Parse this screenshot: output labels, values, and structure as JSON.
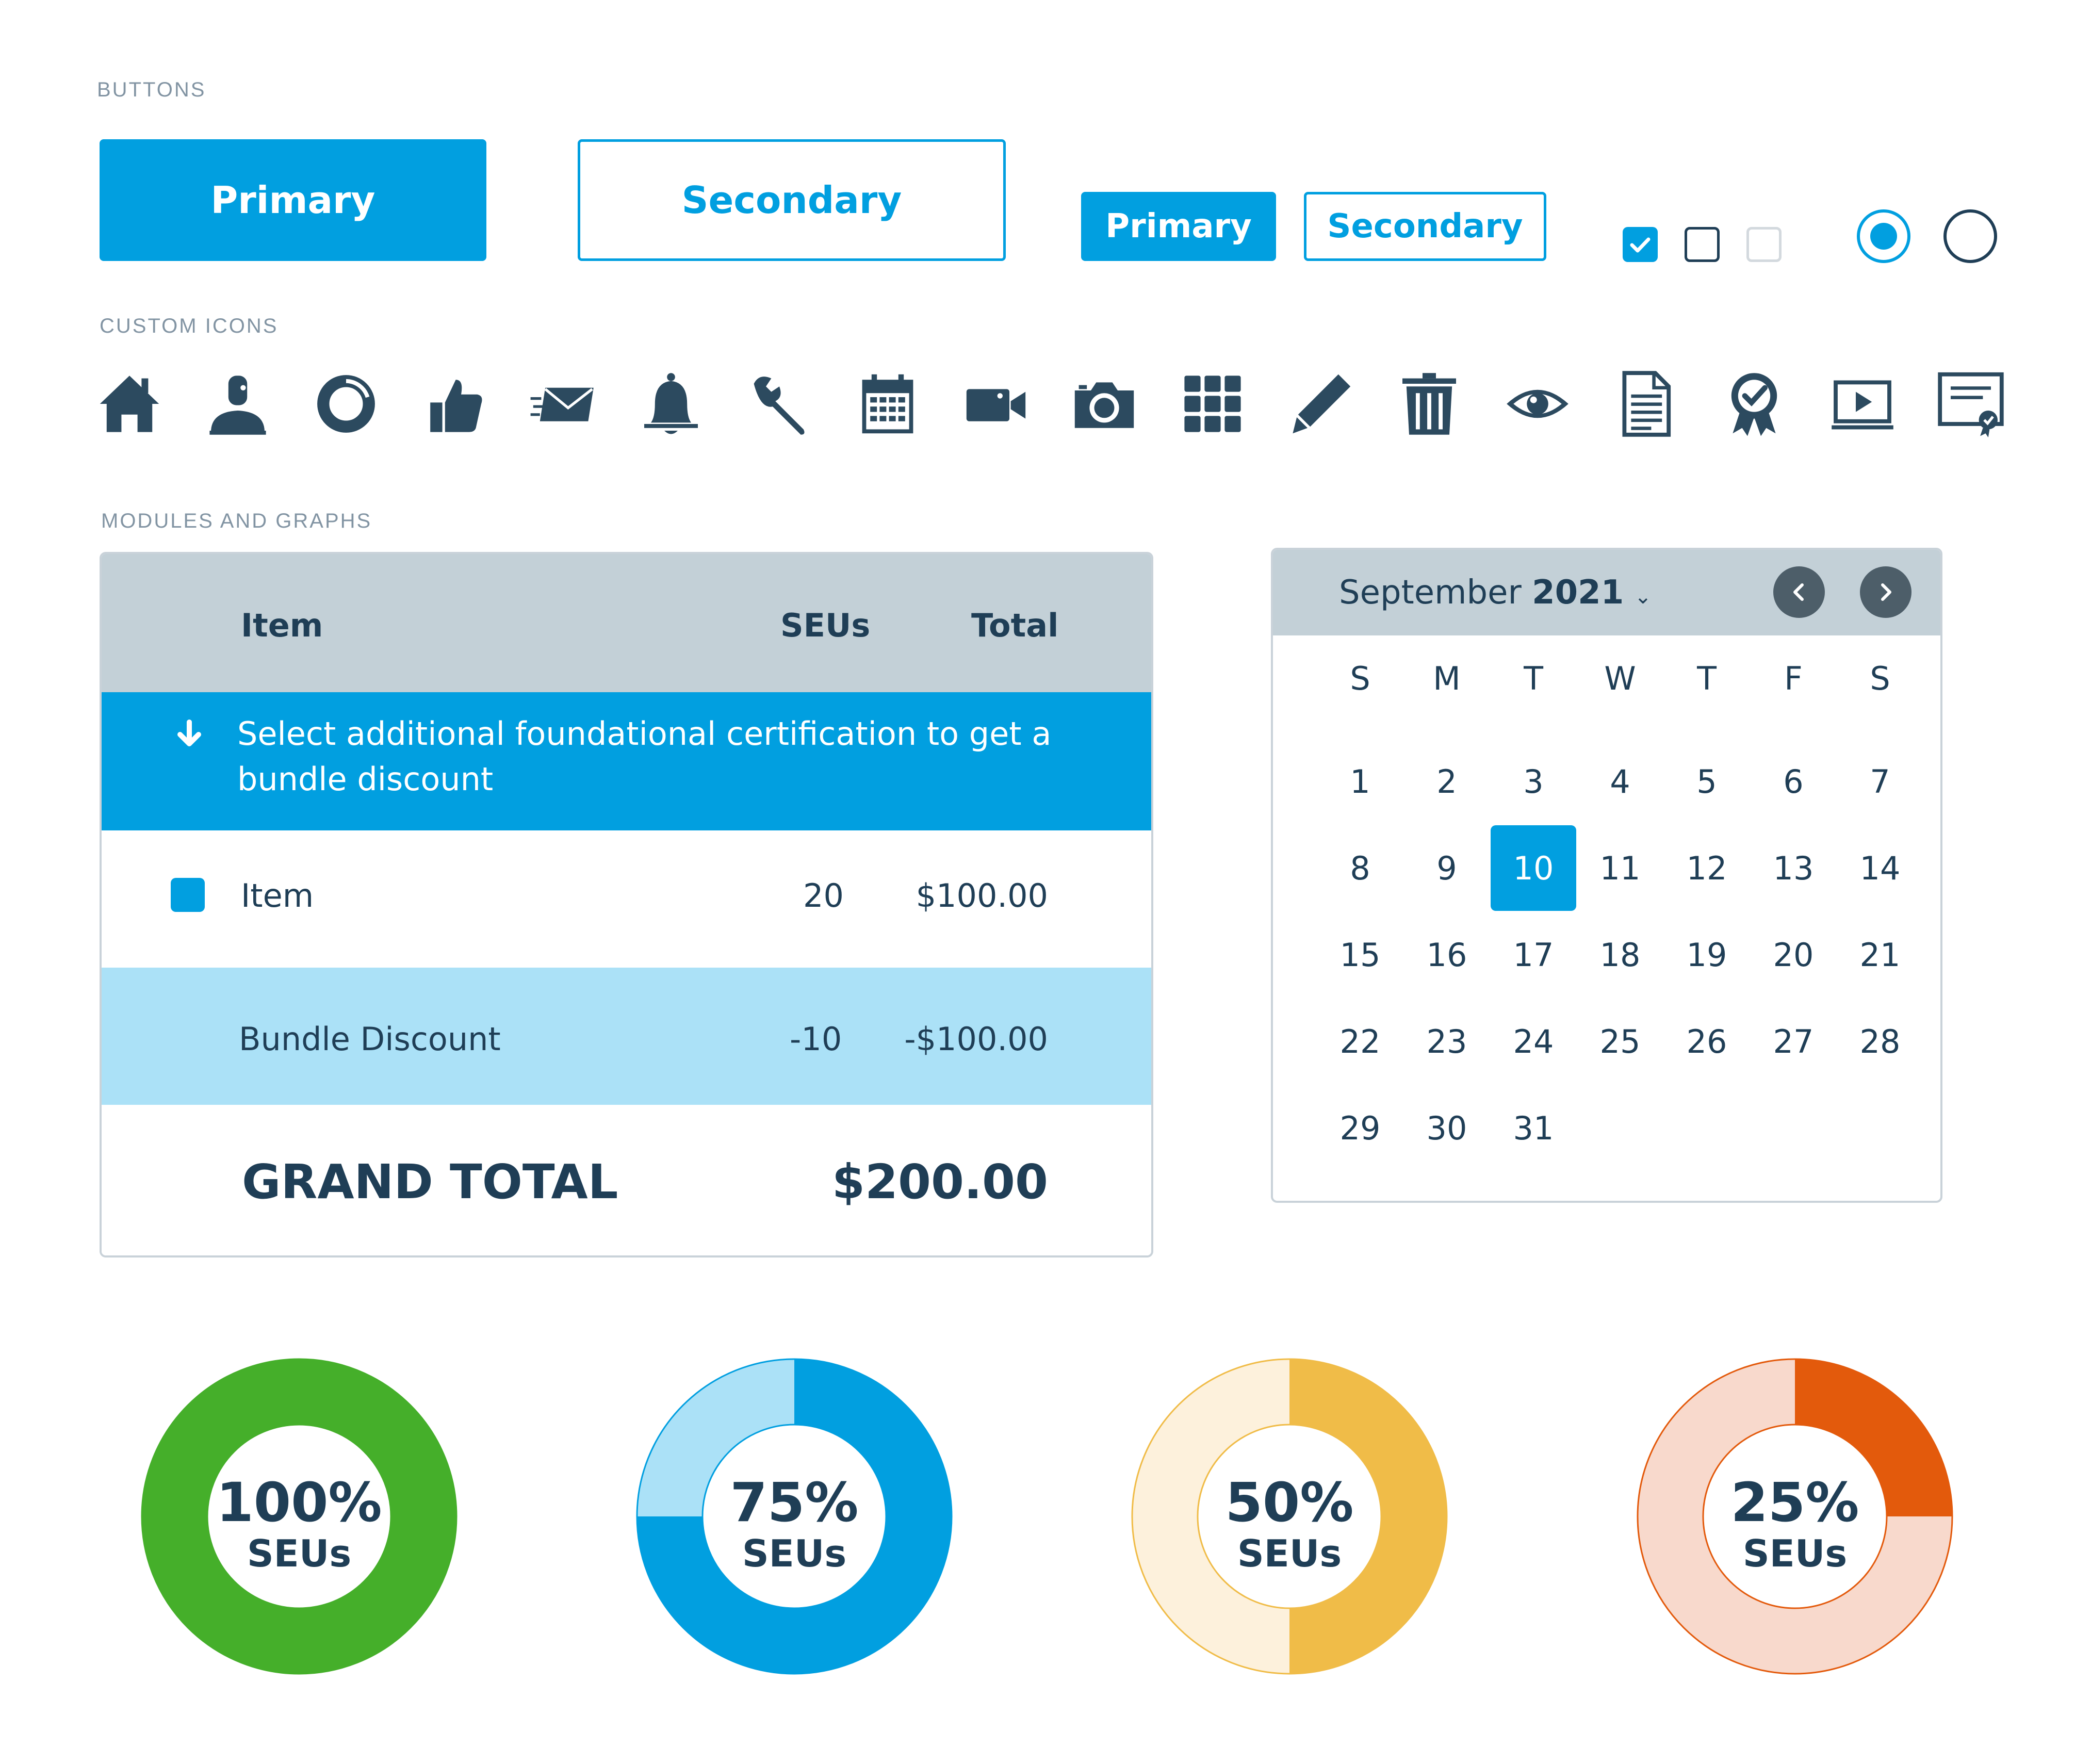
{
  "sections": {
    "buttons": "BUTTONS",
    "icons": "CUSTOM ICONS",
    "modules": "MODULES AND GRAPHS"
  },
  "buttons": {
    "primary_large": "Primary",
    "secondary_large": "Secondary",
    "primary_small": "Primary",
    "secondary_small": "Secondary"
  },
  "controls": {
    "checkboxes": [
      "checked",
      "unchecked",
      "disabled"
    ],
    "radios": [
      "selected",
      "unselected"
    ]
  },
  "icons": [
    "home-icon",
    "user-icon",
    "donut-icon",
    "thumbs-up-icon",
    "mail-icon",
    "bell-icon",
    "wrench-icon",
    "calendar-icon",
    "video-icon",
    "camera-icon",
    "grid-icon",
    "pencil-icon",
    "trash-icon",
    "eye-icon",
    "document-icon",
    "badge-icon",
    "video-player-icon",
    "certificate-icon"
  ],
  "table": {
    "headers": {
      "item": "Item",
      "seus": "SEUs",
      "total": "Total"
    },
    "banner": {
      "line1": "Select additional foundational certification to get a",
      "line2": "bundle discount"
    },
    "item_row": {
      "label": "Item",
      "seus": "20",
      "total": "$100.00"
    },
    "discount_row": {
      "label": "Bundle Discount",
      "seus": "-10",
      "total": "-$100.00"
    },
    "grand": {
      "label": "GRAND TOTAL",
      "value": "$200.00"
    }
  },
  "calendar": {
    "month": "September",
    "year": "2021",
    "weekdays": [
      "S",
      "M",
      "T",
      "W",
      "T",
      "F",
      "S"
    ],
    "days": [
      "1",
      "2",
      "3",
      "4",
      "5",
      "6",
      "7",
      "8",
      "9",
      "10",
      "11",
      "12",
      "13",
      "14",
      "15",
      "16",
      "17",
      "18",
      "19",
      "20",
      "21",
      "22",
      "23",
      "24",
      "25",
      "26",
      "27",
      "28",
      "29",
      "30",
      "31"
    ],
    "selected": "10"
  },
  "donuts": [
    {
      "pct": "100%",
      "unit": "SEUs",
      "value": 1.0,
      "fill": "#45af2a",
      "track": "#45af2a",
      "stroke": "#45af2a"
    },
    {
      "pct": "75%",
      "unit": "SEUs",
      "value": 0.75,
      "fill": "#019fe0",
      "track": "#abe1f7",
      "stroke": "#019fe0"
    },
    {
      "pct": "50%",
      "unit": "SEUs",
      "value": 0.5,
      "fill": "#f0bc48",
      "track": "#fdf1dc",
      "stroke": "#f0bc48"
    },
    {
      "pct": "25%",
      "unit": "SEUs",
      "value": 0.25,
      "fill": "#e35a0c",
      "track": "#f8d9cc",
      "stroke": "#e35a0c"
    }
  ],
  "colors": {
    "accent": "#019fe0",
    "dark": "#1f3e56",
    "icon": "#2c4a5f"
  }
}
